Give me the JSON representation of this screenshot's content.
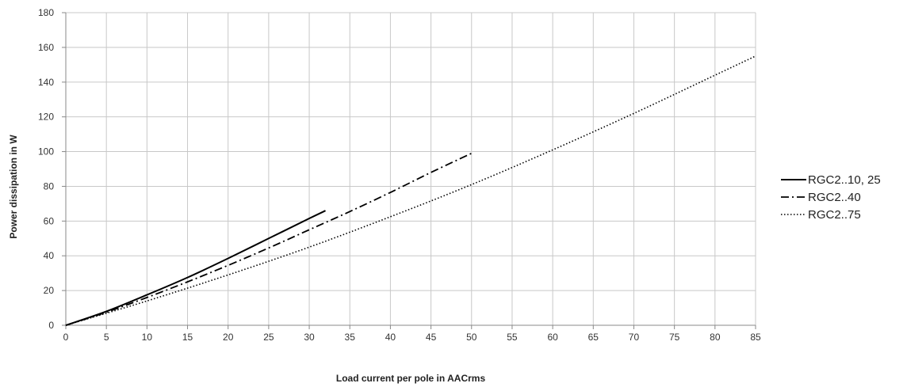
{
  "chart_data": {
    "type": "line",
    "xlabel": "Load current per pole in AACrms",
    "ylabel": "Power dissipation in W",
    "xlim": [
      0,
      85
    ],
    "ylim": [
      0,
      180
    ],
    "x_ticks": [
      0,
      5,
      10,
      15,
      20,
      25,
      30,
      35,
      40,
      45,
      50,
      55,
      60,
      65,
      70,
      75,
      80,
      85
    ],
    "y_ticks": [
      0,
      20,
      40,
      60,
      80,
      100,
      120,
      140,
      160,
      180
    ],
    "grid": true,
    "legend_position": "right",
    "series": [
      {
        "name": "RGC2..10, 25",
        "style": "solid",
        "x": [
          0,
          5,
          10,
          15,
          20,
          25,
          30,
          32
        ],
        "y": [
          0,
          8,
          17.5,
          27.5,
          38.5,
          50,
          61.5,
          66
        ]
      },
      {
        "name": "RGC2..40",
        "style": "dashdot",
        "x": [
          0,
          5,
          10,
          15,
          20,
          25,
          30,
          35,
          40,
          45,
          50
        ],
        "y": [
          0,
          7.5,
          16,
          25,
          34.5,
          44.5,
          55,
          65.5,
          76.5,
          88,
          99
        ]
      },
      {
        "name": "RGC2..75",
        "style": "dotted",
        "x": [
          0,
          10,
          20,
          30,
          40,
          50,
          60,
          70,
          80,
          85
        ],
        "y": [
          0,
          14,
          29,
          45,
          62.5,
          81,
          101,
          122,
          144,
          155
        ]
      }
    ]
  }
}
